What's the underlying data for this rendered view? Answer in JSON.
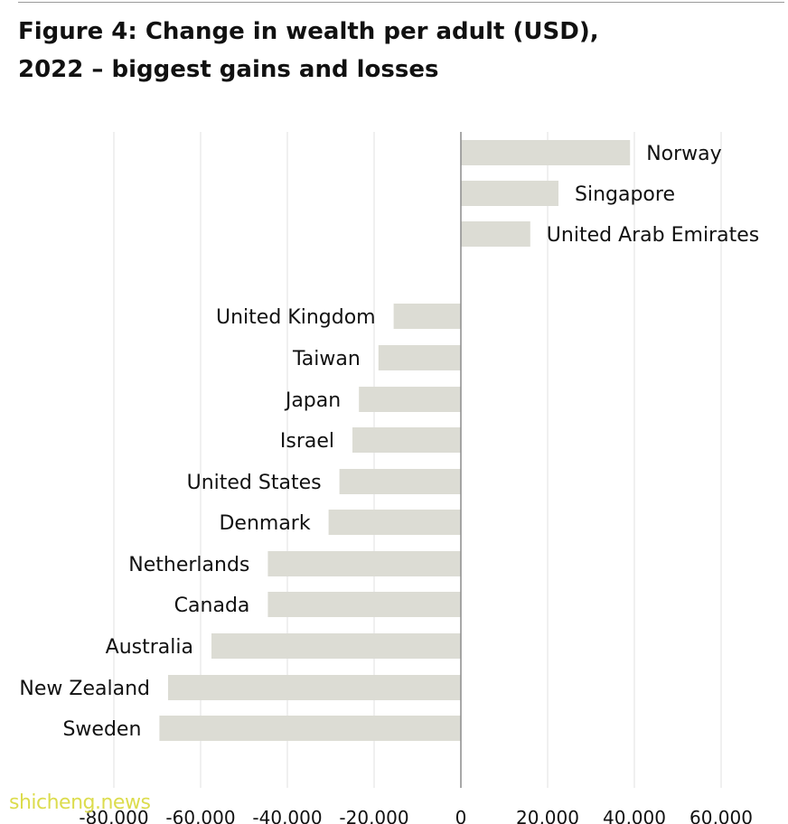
{
  "title": {
    "line1": "Figure 4: Change in wealth per adult (USD),",
    "line2": "2022 – biggest gains and losses"
  },
  "watermark": "shicheng.news",
  "colors": {
    "bar": "#dcdcd4",
    "grid": "#e2e2e2",
    "axis": "#8c8c8c",
    "text": "#111111"
  },
  "chart_data": {
    "type": "bar",
    "orientation": "horizontal",
    "categories": [
      "Norway",
      "Singapore",
      "United Arab Emirates",
      "United Kingdom",
      "Taiwan",
      "Japan",
      "Israel",
      "United States",
      "Denmark",
      "Netherlands",
      "Canada",
      "Australia",
      "New Zealand",
      "Sweden"
    ],
    "values": [
      39000,
      22500,
      16000,
      -15500,
      -19000,
      -23500,
      -25000,
      -28000,
      -30500,
      -44500,
      -44500,
      -57500,
      -67500,
      -69500
    ],
    "xlim": [
      -80000,
      62000
    ],
    "xticks": [
      -80000,
      -60000,
      -40000,
      -20000,
      0,
      20000,
      40000,
      60000
    ],
    "xtick_labels": [
      "-80,000",
      "-60,000",
      "-40,000",
      "-20,000",
      "0",
      "20,000",
      "40,000",
      "60,000"
    ],
    "grid": true
  }
}
